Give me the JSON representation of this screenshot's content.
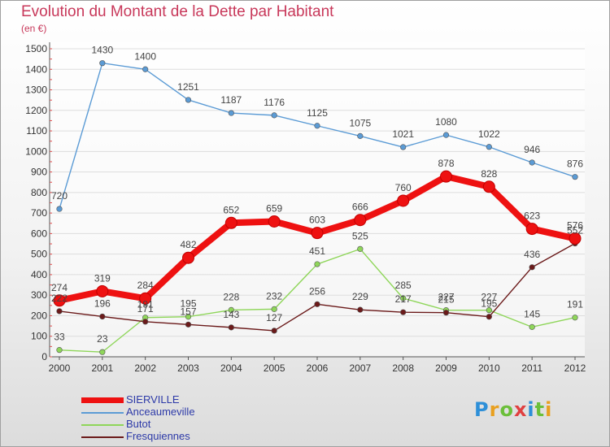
{
  "title": "Evolution du Montant de la Dette par Habitant",
  "subtitle": "(en €)",
  "logo": {
    "text": "Proxiti",
    "letters": [
      {
        "ch": "P",
        "color": "#2d8fd8"
      },
      {
        "ch": "r",
        "color": "#e8a020"
      },
      {
        "ch": "o",
        "color": "#6bbf3a"
      },
      {
        "ch": "x",
        "color": "#e04040"
      },
      {
        "ch": "i",
        "color": "#2d8fd8"
      },
      {
        "ch": "t",
        "color": "#6bbf3a"
      },
      {
        "ch": "i",
        "color": "#e8a020"
      }
    ]
  },
  "chart_data": {
    "type": "line",
    "title": "Evolution du Montant de la Dette par Habitant",
    "ylabel": "(en €)",
    "xlabel": "",
    "ylim": [
      0,
      1500
    ],
    "yticks": [
      0,
      100,
      200,
      300,
      400,
      500,
      600,
      700,
      800,
      900,
      1000,
      1100,
      1200,
      1300,
      1400,
      1500
    ],
    "categories": [
      "2000",
      "2001",
      "2002",
      "2003",
      "2004",
      "2005",
      "2006",
      "2007",
      "2008",
      "2009",
      "2010",
      "2011",
      "2012"
    ],
    "legend_position": "bottom-left",
    "series": [
      {
        "name": "SIERVILLE",
        "color": "#ee1111",
        "values": [
          274,
          319,
          284,
          482,
          652,
          659,
          603,
          666,
          760,
          878,
          828,
          623,
          576
        ]
      },
      {
        "name": "Anceaumeville",
        "color": "#5b9bd5",
        "values": [
          720,
          1430,
          1400,
          1251,
          1187,
          1176,
          1125,
          1075,
          1021,
          1080,
          1022,
          946,
          876
        ]
      },
      {
        "name": "Butot",
        "color": "#8fd65a",
        "values": [
          33,
          23,
          191,
          195,
          228,
          232,
          451,
          525,
          285,
          227,
          227,
          145,
          191
        ]
      },
      {
        "name": "Fresquiennes",
        "color": "#6b1a1a",
        "values": [
          222,
          196,
          171,
          157,
          143,
          127,
          256,
          229,
          217,
          215,
          195,
          436,
          552
        ]
      }
    ]
  }
}
